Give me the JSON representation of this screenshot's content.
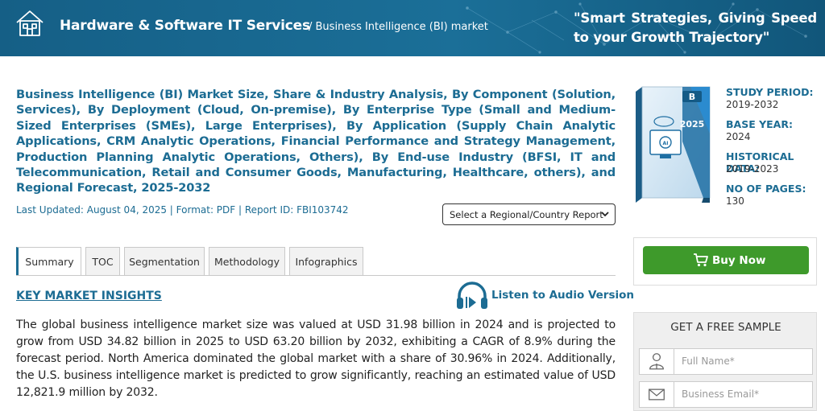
{
  "header": {
    "brand": "Hardware & Software IT Services",
    "breadcrumb": "/ Business Intelligence (BI) market",
    "slogan": "\"Smart Strategies, Giving Speed to your Growth Trajectory\""
  },
  "report": {
    "title": "Business Intelligence (BI) Market Size, Share & Industry Analysis, By Component (Solution, Services), By Deployment (Cloud, On-premise), By Enterprise Type (Small and Medium-Sized Enterprises (SMEs), Large Enterprises), By Application (Supply Chain Analytic Applications, CRM Analytic Operations, Financial Performance and Strategy Management, Production Planning Analytic Operations, Others), By End-use Industry (BFSI, IT and Telecommunication, Retail and Consumer Goods, Manufacturing, Healthcare, others), and Regional Forecast, 2025-2032",
    "meta": "Last Updated: August 04, 2025 | Format: PDF | Report ID: FBI103742",
    "region_select": "Select a Regional/Country Report",
    "cover_year": "2025"
  },
  "tabs": [
    {
      "label": "Summary"
    },
    {
      "label": "TOC"
    },
    {
      "label": "Segmentation"
    },
    {
      "label": "Methodology"
    },
    {
      "label": "Infographics"
    }
  ],
  "insights": {
    "heading": "KEY MARKET INSIGHTS",
    "audio_label": "Listen to Audio Version",
    "paragraph": "The global business intelligence market size was valued at USD 31.98 billion in 2024 and is projected to grow from USD 34.82 billion in 2025 to USD 63.20 billion by 2032, exhibiting a CAGR of 8.9% during the forecast period. North America dominated the global market with a share of 30.96% in 2024. Additionally, the U.S. business intelligence market is predicted to grow significantly, reaching an estimated value of USD 12,821.9 million by 2032."
  },
  "study_info": [
    {
      "label": "STUDY PERIOD:",
      "value": "2019-2032"
    },
    {
      "label": "BASE YEAR:",
      "value": "2024"
    },
    {
      "label": "HISTORICAL DATA:",
      "value": "2019-2023"
    },
    {
      "label": "NO OF PAGES:",
      "value": "130"
    }
  ],
  "buy": {
    "label": "Buy Now"
  },
  "sample": {
    "title": "GET A FREE SAMPLE",
    "name_placeholder": "Full Name*",
    "email_placeholder": "Business Email*"
  },
  "colors": {
    "brand_blue": "#1c6c93",
    "header_bg": "#155f86",
    "buy_green": "#3e9a2b"
  }
}
